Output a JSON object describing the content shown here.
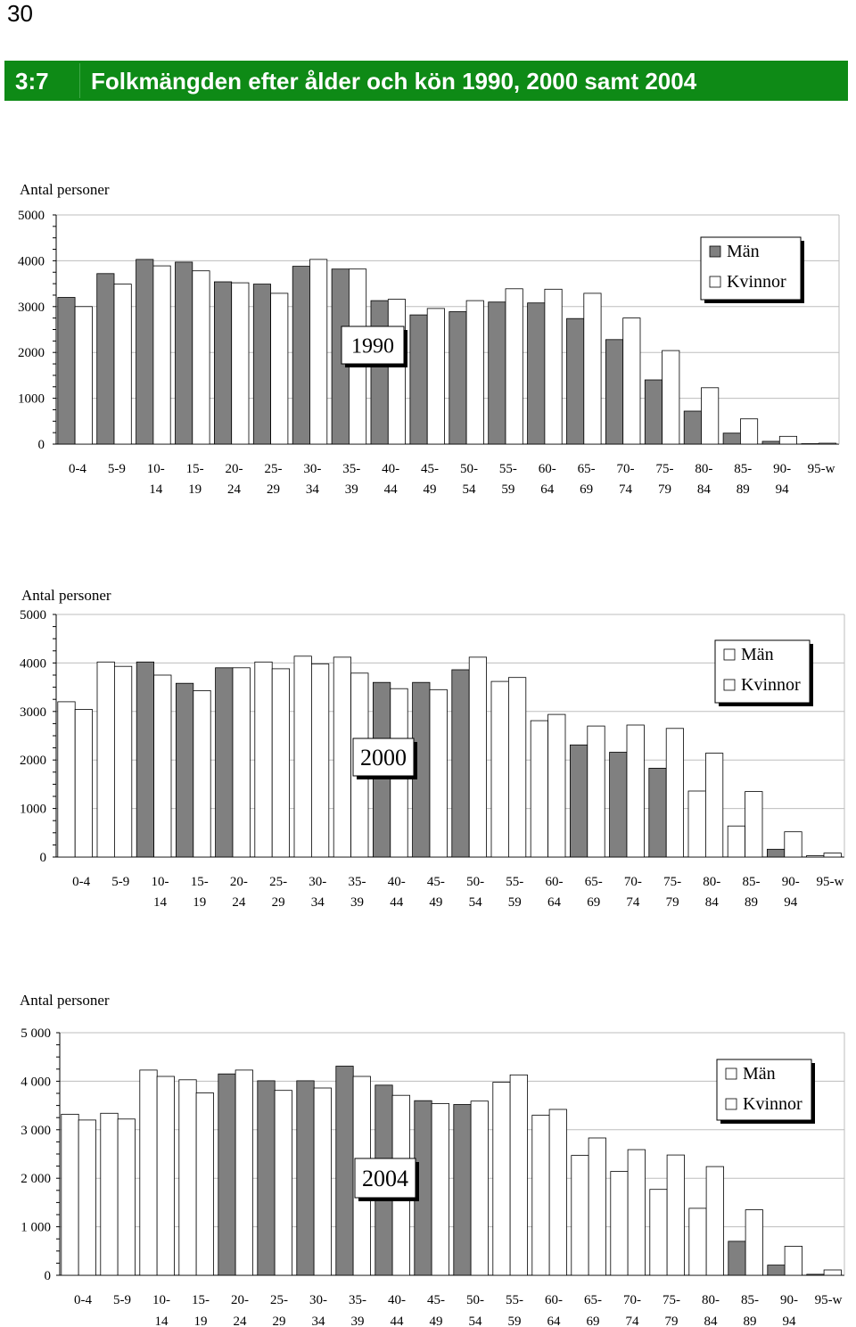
{
  "page_number": "30",
  "header": {
    "number": "3:7",
    "title": "Folkmängden efter ålder och kön 1990, 2000 samt 2004"
  },
  "colors": {
    "header_bg": "#0e8a16",
    "man_fill": "#808080",
    "woman_fill": "#ffffff"
  },
  "chart_data": [
    {
      "type": "bar",
      "year_label": "1990",
      "ylabel": "Antal personer",
      "ylim": [
        0,
        5000
      ],
      "y_ticks": [
        "0",
        "1000",
        "2000",
        "3000",
        "4000",
        "5000"
      ],
      "categories": [
        "0-4",
        "5-9",
        "10-14",
        "15-19",
        "20-24",
        "25-29",
        "30-34",
        "35-39",
        "40-44",
        "45-49",
        "50-54",
        "55-59",
        "60-64",
        "65-69",
        "70-74",
        "75-79",
        "80-84",
        "85-89",
        "90-94",
        "95-w"
      ],
      "category_labels": [
        [
          "0-4",
          ""
        ],
        [
          "5-9",
          ""
        ],
        [
          "10-",
          "14"
        ],
        [
          "15-",
          "19"
        ],
        [
          "20-",
          "24"
        ],
        [
          "25-",
          "29"
        ],
        [
          "30-",
          "34"
        ],
        [
          "35-",
          "39"
        ],
        [
          "40-",
          "44"
        ],
        [
          "45-",
          "49"
        ],
        [
          "50-",
          "54"
        ],
        [
          "55-",
          "59"
        ],
        [
          "60-",
          "64"
        ],
        [
          "65-",
          "69"
        ],
        [
          "70-",
          "74"
        ],
        [
          "75-",
          "79"
        ],
        [
          "80-",
          "84"
        ],
        [
          "85-",
          "89"
        ],
        [
          "90-",
          "94"
        ],
        [
          "95-w",
          ""
        ]
      ],
      "legend": [
        "Män",
        "Kvinnor"
      ],
      "legend_placement": "top-right",
      "grid": true,
      "series": [
        {
          "name": "Män",
          "values": [
            3200,
            3720,
            4030,
            3970,
            3540,
            3490,
            3880,
            3820,
            3130,
            2820,
            2890,
            3100,
            3080,
            2740,
            2280,
            1400,
            720,
            240,
            60,
            10
          ]
        },
        {
          "name": "Kvinnor",
          "values": [
            3000,
            3490,
            3890,
            3780,
            3520,
            3290,
            4030,
            3820,
            3160,
            2960,
            3130,
            3390,
            3380,
            3290,
            2750,
            2040,
            1230,
            550,
            170,
            20
          ]
        }
      ]
    },
    {
      "type": "bar",
      "year_label": "2000",
      "ylabel": "Antal personer",
      "ylim": [
        0,
        5000
      ],
      "y_ticks": [
        "0",
        "1000",
        "2000",
        "3000",
        "4000",
        "5000"
      ],
      "categories": [
        "0-4",
        "5-9",
        "10-14",
        "15-19",
        "20-24",
        "25-29",
        "30-34",
        "35-39",
        "40-44",
        "45-49",
        "50-54",
        "55-59",
        "60-64",
        "65-69",
        "70-74",
        "75-79",
        "80-84",
        "85-89",
        "90-94",
        "95-w"
      ],
      "category_labels": [
        [
          "0-4",
          ""
        ],
        [
          "5-9",
          ""
        ],
        [
          "10-",
          "14"
        ],
        [
          "15-",
          "19"
        ],
        [
          "20-",
          "24"
        ],
        [
          "25-",
          "29"
        ],
        [
          "30-",
          "34"
        ],
        [
          "35-",
          "39"
        ],
        [
          "40-",
          "44"
        ],
        [
          "45-",
          "49"
        ],
        [
          "50-",
          "54"
        ],
        [
          "55-",
          "59"
        ],
        [
          "60-",
          "64"
        ],
        [
          "65-",
          "69"
        ],
        [
          "70-",
          "74"
        ],
        [
          "75-",
          "79"
        ],
        [
          "80-",
          "84"
        ],
        [
          "85-",
          "89"
        ],
        [
          "90-",
          "94"
        ],
        [
          "95-w",
          ""
        ]
      ],
      "legend": [
        "Män",
        "Kvinnor"
      ],
      "legend_placement": "top-right",
      "grid": true,
      "series": [
        {
          "name": "Män",
          "values": [
            3200,
            4020,
            4020,
            3580,
            3900,
            4020,
            4140,
            4120,
            3600,
            3600,
            3860,
            3620,
            2810,
            2310,
            2160,
            1830,
            1360,
            640,
            160,
            30
          ]
        },
        {
          "name": "Kvinnor",
          "values": [
            3040,
            3930,
            3750,
            3430,
            3900,
            3880,
            3980,
            3790,
            3470,
            3450,
            4120,
            3700,
            2940,
            2700,
            2720,
            2650,
            2140,
            1350,
            520,
            80
          ]
        }
      ]
    },
    {
      "type": "bar",
      "year_label": "2004",
      "ylabel": "Antal personer",
      "ylim": [
        0,
        5000
      ],
      "y_ticks": [
        "0",
        "1 000",
        "2 000",
        "3 000",
        "4 000",
        "5 000"
      ],
      "categories": [
        "0-4",
        "5-9",
        "10-14",
        "15-19",
        "20-24",
        "25-29",
        "30-34",
        "35-39",
        "40-44",
        "45-49",
        "50-54",
        "55-59",
        "60-64",
        "65-69",
        "70-74",
        "75-79",
        "80-84",
        "85-89",
        "90-94",
        "95-w"
      ],
      "category_labels": [
        [
          "0-4",
          ""
        ],
        [
          "5-9",
          ""
        ],
        [
          "10-",
          "14"
        ],
        [
          "15-",
          "19"
        ],
        [
          "20-",
          "24"
        ],
        [
          "25-",
          "29"
        ],
        [
          "30-",
          "34"
        ],
        [
          "35-",
          "39"
        ],
        [
          "40-",
          "44"
        ],
        [
          "45-",
          "49"
        ],
        [
          "50-",
          "54"
        ],
        [
          "55-",
          "59"
        ],
        [
          "60-",
          "64"
        ],
        [
          "65-",
          "69"
        ],
        [
          "70-",
          "74"
        ],
        [
          "75-",
          "79"
        ],
        [
          "80-",
          "84"
        ],
        [
          "85-",
          "89"
        ],
        [
          "90-",
          "94"
        ],
        [
          "95-w",
          ""
        ]
      ],
      "legend": [
        "Män",
        "Kvinnor"
      ],
      "legend_placement": "top-right",
      "grid": true,
      "series": [
        {
          "name": "Män",
          "values": [
            3320,
            3340,
            4230,
            4030,
            4150,
            4010,
            4010,
            4310,
            3920,
            3600,
            3520,
            3980,
            3300,
            2470,
            2140,
            1770,
            1380,
            700,
            210,
            20
          ]
        },
        {
          "name": "Kvinnor",
          "values": [
            3200,
            3220,
            4100,
            3760,
            4230,
            3810,
            3860,
            4100,
            3710,
            3540,
            3590,
            4130,
            3420,
            2830,
            2590,
            2480,
            2240,
            1350,
            600,
            110
          ]
        }
      ]
    }
  ]
}
